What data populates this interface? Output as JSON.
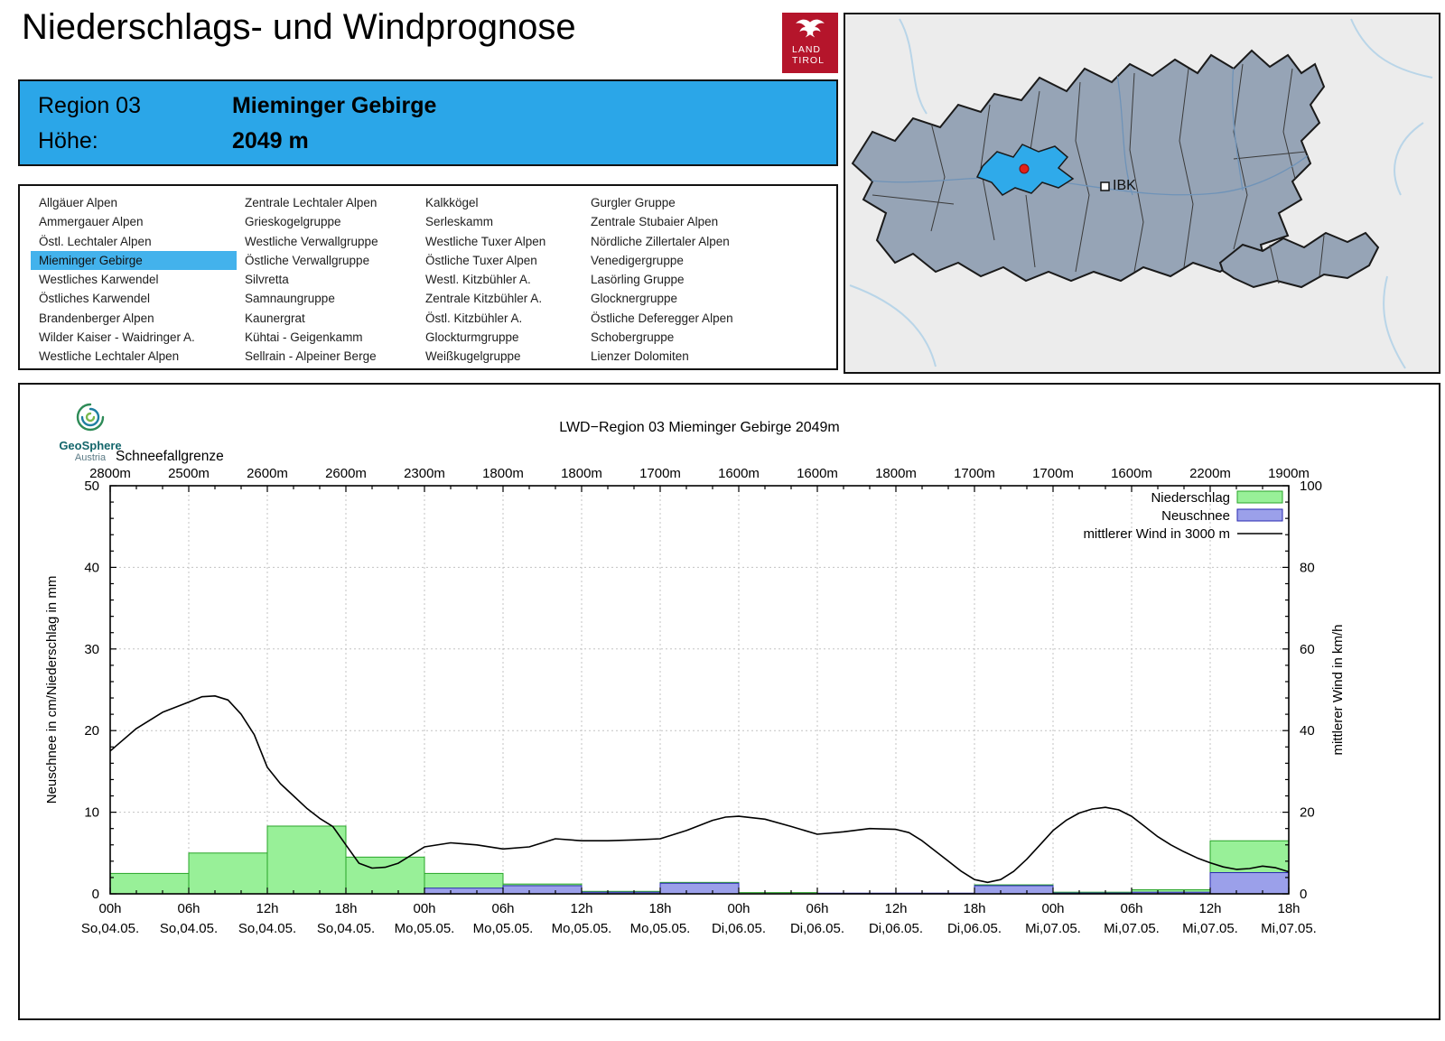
{
  "header": {
    "title": "Niederschlags- und Windprognose",
    "logo_line1": "LAND",
    "logo_line2": "TIROL"
  },
  "region_info": {
    "region_label": "Region 03",
    "region_name": "Mieminger Gebirge",
    "altitude_label": "Höhe:",
    "altitude_value": "2049 m"
  },
  "region_list": {
    "selected": "Mieminger Gebirge",
    "columns": [
      [
        "Allgäuer Alpen",
        "Ammergauer Alpen",
        "Östl. Lechtaler Alpen",
        "Mieminger Gebirge",
        "Westliches Karwendel",
        "Östliches Karwendel",
        "Brandenberger Alpen",
        "Wilder Kaiser - Waidringer A.",
        "Westliche Lechtaler Alpen"
      ],
      [
        "Zentrale Lechtaler Alpen",
        "Grieskogelgruppe",
        "Westliche Verwallgruppe",
        "Östliche Verwallgruppe",
        "Silvretta",
        "Samnaungruppe",
        "Kaunergrat",
        "Kühtai - Geigenkamm",
        "Sellrain - Alpeiner Berge"
      ],
      [
        "Kalkkögel",
        "Serleskamm",
        "Westliche Tuxer Alpen",
        "Östliche Tuxer Alpen",
        "Westl. Kitzbühler A.",
        "Zentrale Kitzbühler A.",
        "Östl. Kitzbühler A.",
        "Glockturmgruppe",
        "Weißkugelgruppe"
      ],
      [
        "Gurgler Gruppe",
        "Zentrale Stubaier Alpen",
        "Nördliche Zillertaler Alpen",
        "Venedigergruppe",
        "Lasörling Gruppe",
        "Glocknergruppe",
        "Östliche Deferegger Alpen",
        "Schobergruppe",
        "Lienzer Dolomiten"
      ]
    ]
  },
  "map": {
    "city_label": "IBK"
  },
  "attribution": {
    "name": "GeoSphere",
    "sub": "Austria"
  },
  "chart_data": {
    "type": "bar",
    "title": "LWD−Region 03 Mieminger Gebirge 2049m",
    "snowline": {
      "label": "Schneefallgrenze",
      "values": [
        "2800m",
        "2500m",
        "2600m",
        "2600m",
        "2300m",
        "1800m",
        "1800m",
        "1700m",
        "1600m",
        "1600m",
        "1800m",
        "1700m",
        "1700m",
        "1600m",
        "2200m",
        "1900m"
      ]
    },
    "x_ticks": [
      {
        "hour": "00h",
        "day": "So,04.05."
      },
      {
        "hour": "06h",
        "day": "So,04.05."
      },
      {
        "hour": "12h",
        "day": "So,04.05."
      },
      {
        "hour": "18h",
        "day": "So,04.05."
      },
      {
        "hour": "00h",
        "day": "Mo,05.05."
      },
      {
        "hour": "06h",
        "day": "Mo,05.05."
      },
      {
        "hour": "12h",
        "day": "Mo,05.05."
      },
      {
        "hour": "18h",
        "day": "Mo,05.05."
      },
      {
        "hour": "00h",
        "day": "Di,06.05."
      },
      {
        "hour": "06h",
        "day": "Di,06.05."
      },
      {
        "hour": "12h",
        "day": "Di,06.05."
      },
      {
        "hour": "18h",
        "day": "Di,06.05."
      },
      {
        "hour": "00h",
        "day": "Mi,07.05."
      },
      {
        "hour": "06h",
        "day": "Mi,07.05."
      },
      {
        "hour": "12h",
        "day": "Mi,07.05."
      },
      {
        "hour": "18h",
        "day": "Mi,07.05."
      }
    ],
    "left_axis": {
      "label": "Neuschnee in cm/Niederschlag in mm",
      "min": 0,
      "max": 50,
      "step": 10
    },
    "right_axis": {
      "label": "mittlerer Wind in km/h",
      "min": 0,
      "max": 100,
      "step": 20
    },
    "legend": [
      {
        "label": "Niederschlag",
        "swatch": "box",
        "color": "#98F098",
        "border": "#28A428"
      },
      {
        "label": "Neuschnee",
        "swatch": "box",
        "color": "#9BA0EA",
        "border": "#2A2AB0"
      },
      {
        "label": "mittlerer Wind in 3000 m",
        "swatch": "line",
        "color": "#000000"
      }
    ],
    "precip_mm": [
      2.5,
      5.0,
      8.3,
      4.5,
      2.5,
      1.2,
      0.3,
      1.4,
      0.15,
      0,
      0,
      1.1,
      0.2,
      0.5,
      6.5
    ],
    "snow_cm": [
      0,
      0,
      0,
      0,
      0.7,
      1.0,
      0.2,
      1.3,
      0,
      0,
      0,
      1.0,
      0.1,
      0.2,
      2.6
    ],
    "wind_kmh": [
      [
        0,
        35
      ],
      [
        2,
        40.5
      ],
      [
        4,
        44.5
      ],
      [
        6,
        47
      ],
      [
        7,
        48.3
      ],
      [
        8,
        48.5
      ],
      [
        9,
        47.5
      ],
      [
        10,
        44
      ],
      [
        11,
        39
      ],
      [
        12,
        31
      ],
      [
        13,
        27
      ],
      [
        14,
        24
      ],
      [
        15,
        21
      ],
      [
        16,
        18.5
      ],
      [
        17,
        16.5
      ],
      [
        18,
        12
      ],
      [
        19,
        7.5
      ],
      [
        20,
        6.3
      ],
      [
        21,
        6.5
      ],
      [
        22,
        7.5
      ],
      [
        23,
        9.5
      ],
      [
        24,
        11.5
      ],
      [
        26,
        12.5
      ],
      [
        28,
        12
      ],
      [
        30,
        11
      ],
      [
        32,
        11.5
      ],
      [
        34,
        13.5
      ],
      [
        36,
        13
      ],
      [
        38,
        13
      ],
      [
        40,
        13.2
      ],
      [
        42,
        13.5
      ],
      [
        44,
        15.5
      ],
      [
        46,
        18
      ],
      [
        47,
        18.8
      ],
      [
        48,
        19
      ],
      [
        50,
        18.3
      ],
      [
        52,
        16.5
      ],
      [
        54,
        14.6
      ],
      [
        56,
        15.2
      ],
      [
        58,
        16
      ],
      [
        60,
        15.8
      ],
      [
        61,
        15
      ],
      [
        62,
        13
      ],
      [
        63,
        10.5
      ],
      [
        64,
        8
      ],
      [
        65,
        5.5
      ],
      [
        66,
        3.5
      ],
      [
        67,
        2.8
      ],
      [
        68,
        3.5
      ],
      [
        69,
        5.5
      ],
      [
        70,
        8.5
      ],
      [
        71,
        12
      ],
      [
        72,
        15.5
      ],
      [
        73,
        18
      ],
      [
        74,
        19.8
      ],
      [
        75,
        20.8
      ],
      [
        76,
        21.2
      ],
      [
        77,
        20.6
      ],
      [
        78,
        19
      ],
      [
        79,
        16.5
      ],
      [
        80,
        14
      ],
      [
        81,
        12
      ],
      [
        82,
        10.3
      ],
      [
        83,
        8.8
      ],
      [
        84,
        7.6
      ],
      [
        85,
        6.6
      ],
      [
        86,
        6
      ],
      [
        87,
        6.2
      ],
      [
        88,
        6.8
      ],
      [
        89,
        6.4
      ],
      [
        90,
        5.4
      ]
    ]
  }
}
